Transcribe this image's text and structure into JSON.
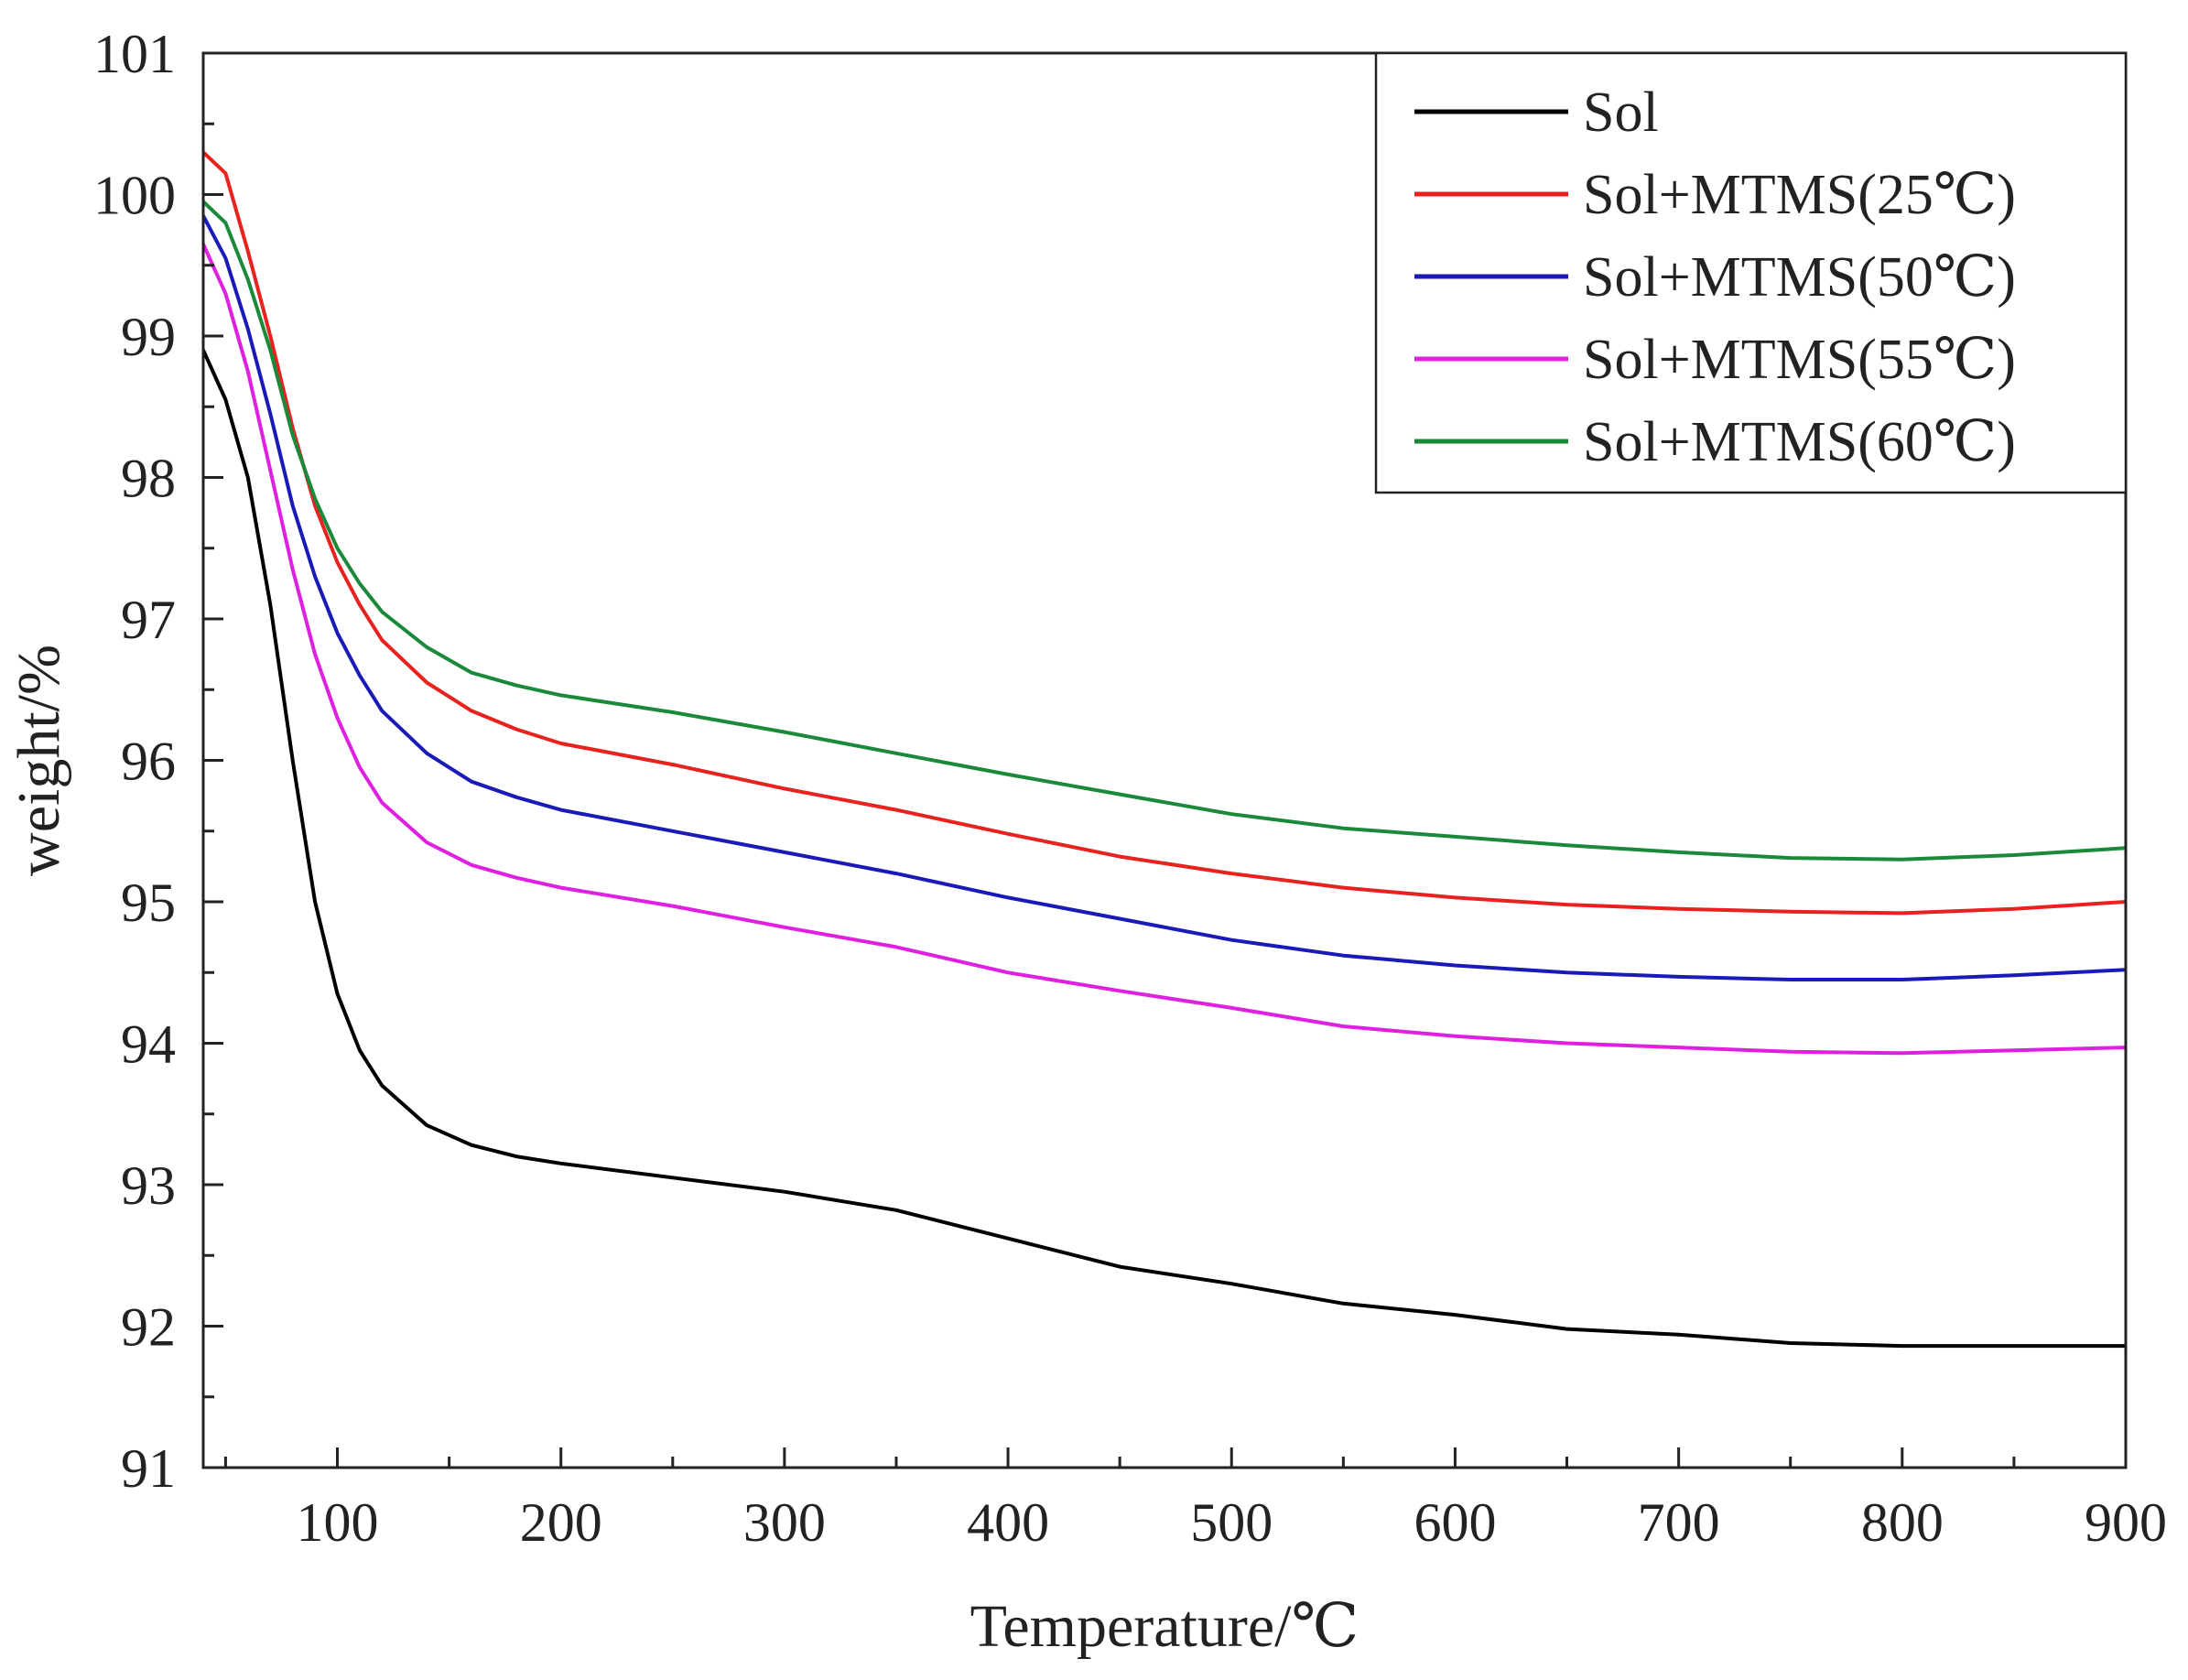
{
  "chart_data": {
    "type": "line",
    "title": "",
    "xlabel": "Temperature/℃",
    "ylabel": "weight/%",
    "xlim": [
      40,
      900
    ],
    "ylim": [
      91,
      101
    ],
    "xticks": [
      100,
      200,
      300,
      400,
      500,
      600,
      700,
      800,
      900
    ],
    "yticks": [
      91,
      92,
      93,
      94,
      95,
      96,
      97,
      98,
      99,
      100,
      101
    ],
    "legend_position": "top-right",
    "grid": false,
    "series": [
      {
        "name": "Sol",
        "color": "#000000",
        "x": [
          40,
          50,
          60,
          70,
          80,
          90,
          100,
          110,
          120,
          140,
          160,
          180,
          200,
          250,
          300,
          350,
          400,
          450,
          500,
          550,
          600,
          650,
          700,
          750,
          800,
          850,
          900
        ],
        "y": [
          98.9,
          98.55,
          98.0,
          97.1,
          96.0,
          95.0,
          94.35,
          93.95,
          93.7,
          93.42,
          93.28,
          93.2,
          93.15,
          93.05,
          92.95,
          92.82,
          92.62,
          92.42,
          92.3,
          92.16,
          92.08,
          91.98,
          91.94,
          91.88,
          91.86,
          91.86,
          91.86
        ]
      },
      {
        "name": "Sol+MTMS(25℃)",
        "color": "#e8221e",
        "x": [
          40,
          50,
          60,
          70,
          80,
          90,
          100,
          110,
          120,
          140,
          160,
          180,
          200,
          250,
          300,
          350,
          400,
          450,
          500,
          550,
          600,
          650,
          700,
          750,
          800,
          850,
          900
        ],
        "y": [
          100.3,
          100.15,
          99.6,
          99.0,
          98.35,
          97.8,
          97.4,
          97.1,
          96.85,
          96.55,
          96.35,
          96.22,
          96.12,
          95.97,
          95.8,
          95.65,
          95.48,
          95.32,
          95.2,
          95.1,
          95.03,
          94.98,
          94.95,
          94.93,
          94.92,
          94.95,
          95.0
        ]
      },
      {
        "name": "Sol+MTMS(50℃)",
        "color": "#1a1ab8",
        "x": [
          40,
          50,
          60,
          70,
          80,
          90,
          100,
          110,
          120,
          140,
          160,
          180,
          200,
          250,
          300,
          350,
          400,
          450,
          500,
          550,
          600,
          650,
          700,
          750,
          800,
          850,
          900
        ],
        "y": [
          99.85,
          99.55,
          99.05,
          98.45,
          97.8,
          97.3,
          96.9,
          96.6,
          96.35,
          96.05,
          95.85,
          95.74,
          95.65,
          95.5,
          95.35,
          95.2,
          95.03,
          94.88,
          94.73,
          94.62,
          94.55,
          94.5,
          94.47,
          94.45,
          94.45,
          94.48,
          94.52
        ]
      },
      {
        "name": "Sol+MTMS(55℃)",
        "color": "#e020e0",
        "x": [
          40,
          50,
          60,
          70,
          80,
          90,
          100,
          110,
          120,
          140,
          160,
          180,
          200,
          250,
          300,
          350,
          400,
          450,
          500,
          550,
          600,
          650,
          700,
          750,
          800,
          850,
          900
        ],
        "y": [
          99.65,
          99.3,
          98.75,
          98.05,
          97.35,
          96.75,
          96.3,
          95.95,
          95.7,
          95.42,
          95.26,
          95.17,
          95.1,
          94.97,
          94.82,
          94.68,
          94.5,
          94.37,
          94.25,
          94.12,
          94.05,
          94.0,
          93.97,
          93.94,
          93.93,
          93.95,
          93.97
        ]
      },
      {
        "name": "Sol+MTMS(60℃)",
        "color": "#1a8a3a",
        "x": [
          40,
          50,
          60,
          70,
          80,
          90,
          100,
          110,
          120,
          140,
          160,
          180,
          200,
          250,
          300,
          350,
          400,
          450,
          500,
          550,
          600,
          650,
          700,
          750,
          800,
          850,
          900
        ],
        "y": [
          99.95,
          99.8,
          99.4,
          98.9,
          98.3,
          97.85,
          97.5,
          97.25,
          97.05,
          96.8,
          96.62,
          96.53,
          96.46,
          96.34,
          96.2,
          96.05,
          95.9,
          95.76,
          95.62,
          95.52,
          95.46,
          95.4,
          95.35,
          95.31,
          95.3,
          95.33,
          95.38
        ]
      }
    ]
  }
}
